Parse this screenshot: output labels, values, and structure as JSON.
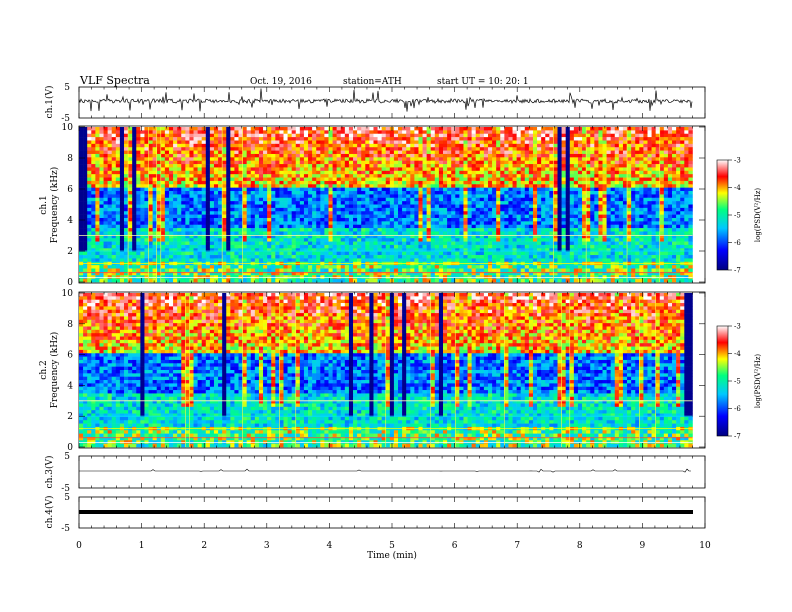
{
  "header": {
    "title": "VLF Spectra",
    "date": "Oct. 19, 2016",
    "station": "station=ATH",
    "start": "start  UT  =   10: 20: 1"
  },
  "chart_data": [
    {
      "type": "line",
      "name": "ch1-waveform",
      "ylabel": "ch.1(V)",
      "ylim": [
        -5,
        5
      ],
      "yticks": [
        "5",
        "-5"
      ],
      "xlim": [
        0,
        10
      ]
    },
    {
      "type": "heatmap",
      "name": "ch1-spectrogram",
      "ylabel_top": "ch.1",
      "ylabel": "Frequency  (kHz)",
      "ylim": [
        0,
        10
      ],
      "yticks": [
        "0",
        "2",
        "4",
        "6",
        "8",
        "10"
      ],
      "xlim": [
        0,
        10
      ],
      "data_end_min": 9.8,
      "colorbar": {
        "label": "log(PSD(V²/Hz)",
        "range": [
          -7,
          -3
        ],
        "ticks": [
          "-3",
          "-4",
          "-5",
          "-6",
          "-7"
        ],
        "colors": [
          "#000080",
          "#0000ff",
          "#00c8ff",
          "#00ff80",
          "#ffff00",
          "#ff0000",
          "#ffffff"
        ]
      }
    },
    {
      "type": "heatmap",
      "name": "ch2-spectrogram",
      "ylabel_top": "ch.2",
      "ylabel": "Frequency  (kHz)",
      "ylim": [
        0,
        10
      ],
      "yticks": [
        "0",
        "2",
        "4",
        "6",
        "8",
        "10"
      ],
      "xlim": [
        0,
        10
      ],
      "data_end_min": 9.8,
      "colorbar": {
        "label": "log(PSD(V²/Hz)",
        "range": [
          -7,
          -3
        ],
        "ticks": [
          "-3",
          "-4",
          "-5",
          "-6",
          "-7"
        ],
        "colors": [
          "#000080",
          "#0000ff",
          "#00c8ff",
          "#00ff80",
          "#ffff00",
          "#ff0000",
          "#ffffff"
        ]
      }
    },
    {
      "type": "line",
      "name": "ch3-waveform",
      "ylabel": "ch.3(V)",
      "ylim": [
        -5,
        5
      ],
      "yticks": [
        "5",
        "-5"
      ],
      "xlim": [
        0,
        10
      ]
    },
    {
      "type": "line",
      "name": "ch4-waveform",
      "ylabel": "ch.4(V)",
      "ylim": [
        -5,
        5
      ],
      "yticks": [
        "5",
        "-5"
      ],
      "xlim": [
        0,
        10
      ]
    }
  ],
  "xaxis": {
    "label": "Time  (min)",
    "ticks": [
      "0",
      "1",
      "2",
      "3",
      "4",
      "5",
      "6",
      "7",
      "8",
      "9",
      "10"
    ]
  }
}
